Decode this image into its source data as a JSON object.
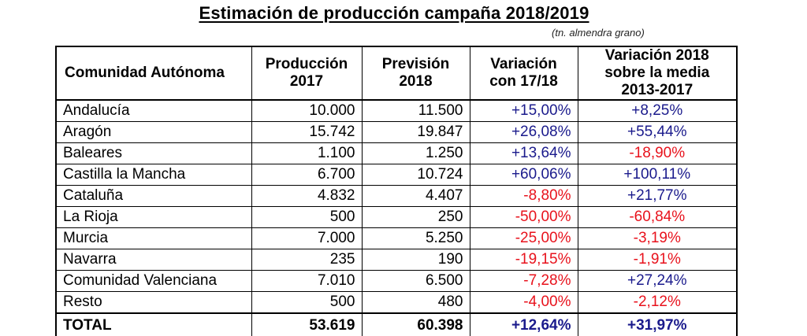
{
  "header": {
    "title": "Estimación de producción campaña 2018/2019",
    "unit_note": "(tn. almendra grano)"
  },
  "table": {
    "columns": [
      "Comunidad Autónoma",
      "Producción 2017",
      "Previsión 2018",
      "Variación con 17/18",
      "Variación 2018 sobre la media 2013-2017"
    ],
    "rows": [
      {
        "region": "Andalucía",
        "prod_2017": "10.000",
        "prev_2018": "11.500",
        "var_17_18": "+15,00%",
        "var_media": "+8,25%"
      },
      {
        "region": "Aragón",
        "prod_2017": "15.742",
        "prev_2018": "19.847",
        "var_17_18": "+26,08%",
        "var_media": "+55,44%"
      },
      {
        "region": "Baleares",
        "prod_2017": "1.100",
        "prev_2018": "1.250",
        "var_17_18": "+13,64%",
        "var_media": "-18,90%"
      },
      {
        "region": "Castilla la Mancha",
        "prod_2017": "6.700",
        "prev_2018": "10.724",
        "var_17_18": "+60,06%",
        "var_media": "+100,11%"
      },
      {
        "region": "Cataluña",
        "prod_2017": "4.832",
        "prev_2018": "4.407",
        "var_17_18": "-8,80%",
        "var_media": "+21,77%"
      },
      {
        "region": "La Rioja",
        "prod_2017": "500",
        "prev_2018": "250",
        "var_17_18": "-50,00%",
        "var_media": "-60,84%"
      },
      {
        "region": "Murcia",
        "prod_2017": "7.000",
        "prev_2018": "5.250",
        "var_17_18": "-25,00%",
        "var_media": "-3,19%"
      },
      {
        "region": "Navarra",
        "prod_2017": "235",
        "prev_2018": "190",
        "var_17_18": "-19,15%",
        "var_media": "-1,91%"
      },
      {
        "region": "Comunidad Valenciana",
        "prod_2017": "7.010",
        "prev_2018": "6.500",
        "var_17_18": "-7,28%",
        "var_media": "+27,24%"
      },
      {
        "region": "Resto",
        "prod_2017": "500",
        "prev_2018": "480",
        "var_17_18": "-4,00%",
        "var_media": "-2,12%"
      }
    ],
    "total": {
      "region": "TOTAL",
      "prod_2017": "53.619",
      "prev_2018": "60.398",
      "var_17_18": "+12,64%",
      "var_media": "+31,97%"
    }
  },
  "colors": {
    "positive": "#1a1a8c",
    "negative": "#e8121c",
    "text": "#000000",
    "border": "#000000"
  }
}
